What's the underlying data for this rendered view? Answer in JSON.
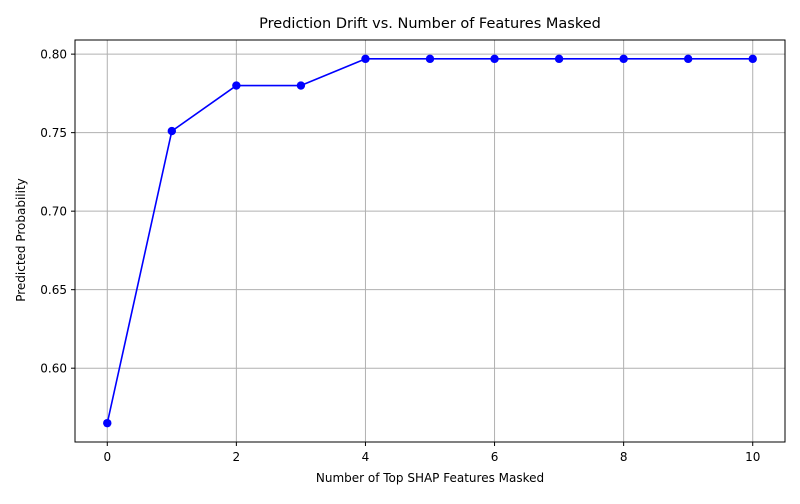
{
  "chart_data": {
    "type": "line",
    "title": "Prediction Drift vs. Number of Features Masked",
    "xlabel": "Number of Top SHAP Features Masked",
    "ylabel": "Predicted Probability",
    "x": [
      0,
      1,
      2,
      3,
      4,
      5,
      6,
      7,
      8,
      9,
      10
    ],
    "series": [
      {
        "values": [
          0.565,
          0.751,
          0.78,
          0.78,
          0.797,
          0.797,
          0.797,
          0.797,
          0.797,
          0.797,
          0.797
        ],
        "color": "#0000ff",
        "marker": "circle"
      }
    ],
    "xlim": [
      -0.5,
      10.5
    ],
    "ylim": [
      0.553,
      0.809
    ],
    "xticks": [
      0,
      2,
      4,
      6,
      8,
      10
    ],
    "xtick_labels": [
      "0",
      "2",
      "4",
      "6",
      "8",
      "10"
    ],
    "yticks": [
      0.6,
      0.65,
      0.7,
      0.75,
      0.8
    ],
    "ytick_labels": [
      "0.60",
      "0.65",
      "0.70",
      "0.75",
      "0.80"
    ],
    "grid": true,
    "grid_color": "#b0b0b0"
  }
}
